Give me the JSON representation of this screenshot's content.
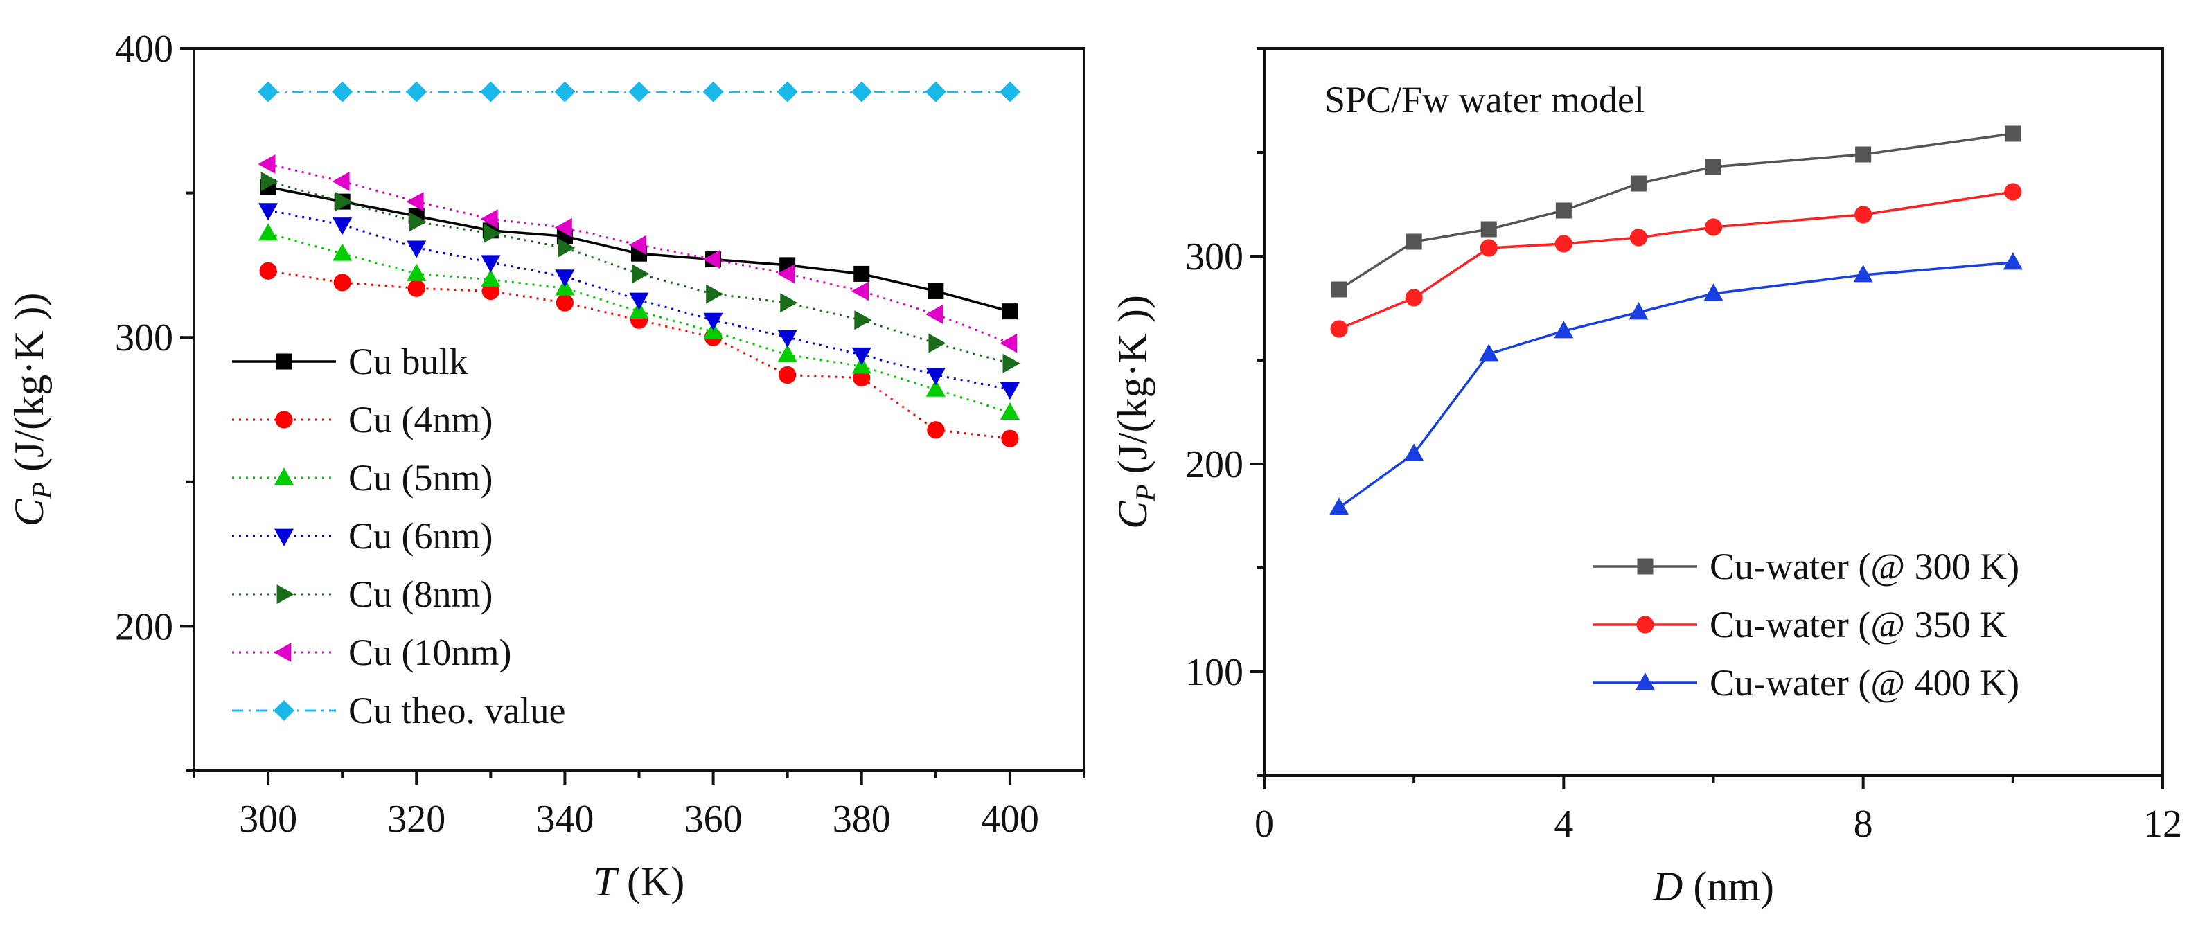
{
  "chart_data": [
    {
      "type": "line",
      "xlabel": "T (K)",
      "xlabel_parts": {
        "symbol": "T",
        "unit": " (K)"
      },
      "ylabel": "CP (J/(kg·K ))",
      "ylabel_parts": {
        "symbol": "C",
        "subscript": "P",
        "unit": " (J/(kg·K ))"
      },
      "xlim": [
        290,
        410
      ],
      "ylim": [
        150,
        400
      ],
      "xticks": [
        300,
        320,
        340,
        360,
        380,
        400
      ],
      "yticks": [
        200,
        300,
        400
      ],
      "x": [
        300,
        310,
        320,
        330,
        340,
        350,
        360,
        370,
        380,
        390,
        400
      ],
      "legend_position": "lower-left",
      "series": [
        {
          "name": "Cu bulk",
          "color": "#000000",
          "marker": "square",
          "dash": "solid",
          "values": [
            352,
            347,
            342,
            337,
            335,
            329,
            327,
            325,
            322,
            316,
            309
          ]
        },
        {
          "name": "Cu (4nm)",
          "color": "#ff0000",
          "marker": "circle",
          "dash": "dot",
          "values": [
            323,
            319,
            317,
            316,
            312,
            306,
            300,
            287,
            286,
            268,
            265
          ]
        },
        {
          "name": "Cu (5nm)",
          "color": "#00cc00",
          "marker": "triangle-up",
          "dash": "dot",
          "values": [
            336,
            329,
            322,
            320,
            317,
            309,
            302,
            294,
            290,
            282,
            274
          ]
        },
        {
          "name": "Cu (6nm)",
          "color": "#0000dd",
          "marker": "triangle-down",
          "dash": "dot",
          "values": [
            344,
            339,
            331,
            326,
            321,
            313,
            306,
            300,
            294,
            287,
            282
          ]
        },
        {
          "name": "Cu (8nm)",
          "color": "#1a6b1a",
          "marker": "triangle-right",
          "dash": "dot",
          "values": [
            354,
            347,
            340,
            336,
            331,
            322,
            315,
            312,
            306,
            298,
            291
          ]
        },
        {
          "name": "Cu (10nm)",
          "color": "#e000c8",
          "marker": "triangle-left",
          "dash": "dot",
          "values": [
            360,
            354,
            347,
            341,
            338,
            332,
            327,
            322,
            316,
            308,
            298
          ]
        },
        {
          "name": "Cu theo. value",
          "color": "#1ab8e8",
          "marker": "diamond",
          "dash": "dashdot",
          "values": [
            385,
            385,
            385,
            385,
            385,
            385,
            385,
            385,
            385,
            385,
            385
          ]
        }
      ]
    },
    {
      "type": "line",
      "annotation": "SPC/Fw water model",
      "xlabel": "D (nm)",
      "xlabel_parts": {
        "symbol": "D",
        "unit": " (nm)"
      },
      "ylabel": "CP (J/(kg·K ))",
      "ylabel_parts": {
        "symbol": "C",
        "subscript": "P",
        "unit": " (J/(kg·K ))"
      },
      "xlim": [
        0,
        12
      ],
      "ylim": [
        50,
        400
      ],
      "xticks": [
        0,
        4,
        8,
        12
      ],
      "yticks": [
        100,
        200,
        300
      ],
      "x": [
        1,
        2,
        3,
        4,
        5,
        6,
        8,
        10
      ],
      "legend_position": "lower-right",
      "series": [
        {
          "name": "Cu-water (@ 300 K)",
          "color": "#555555",
          "marker": "square",
          "dash": "solid",
          "values": [
            284,
            307,
            313,
            322,
            335,
            343,
            349,
            359
          ]
        },
        {
          "name": "Cu-water (@ 350 K",
          "color": "#ff2020",
          "marker": "circle",
          "dash": "solid",
          "values": [
            265,
            280,
            304,
            306,
            309,
            314,
            320,
            331
          ]
        },
        {
          "name": "Cu-water (@ 400 K)",
          "color": "#1a3fe0",
          "marker": "triangle-up",
          "dash": "solid",
          "values": [
            179,
            205,
            253,
            264,
            273,
            282,
            291,
            297
          ]
        }
      ]
    }
  ]
}
